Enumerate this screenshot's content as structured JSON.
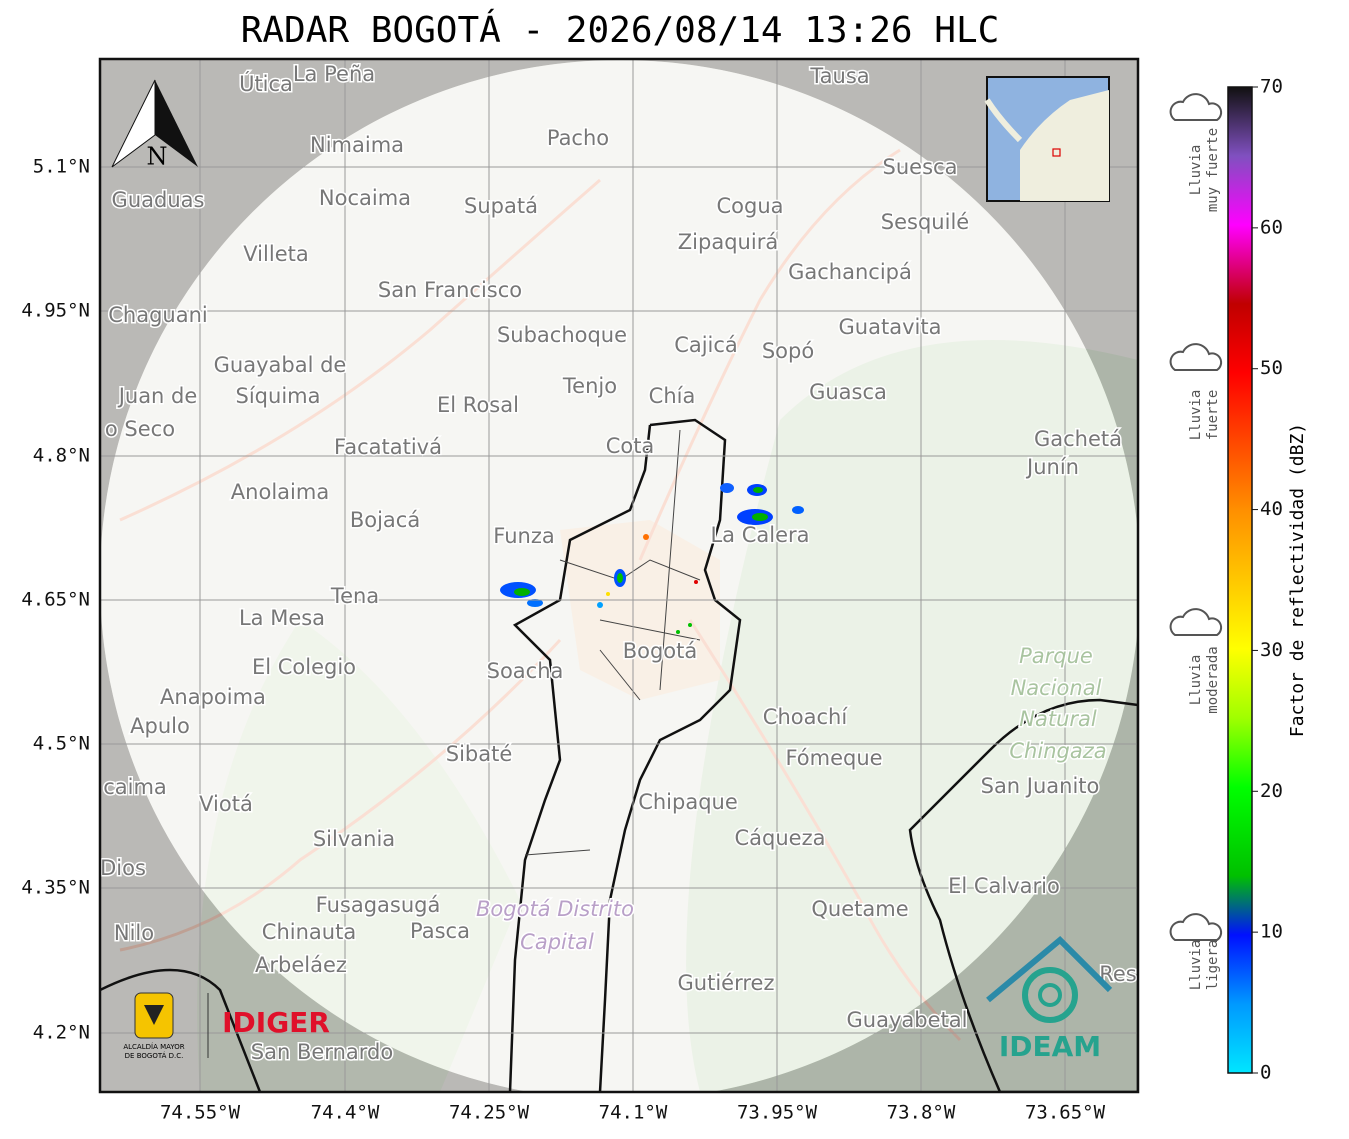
{
  "title": "RADAR BOGOTÁ - 2026/08/14 13:26 HLC",
  "lat_labels": [
    "5.1°N",
    "4.95°N",
    "4.8°N",
    "4.65°N",
    "4.5°N",
    "4.35°N",
    "4.2°N"
  ],
  "lon_labels": [
    "74.55°W",
    "74.4°W",
    "74.25°W",
    "74.1°W",
    "73.95°W",
    "73.8°W",
    "73.65°W"
  ],
  "north": "N",
  "colorbar": {
    "label": "Factor de reflectividad (dBZ)",
    "ticks": [
      0,
      10,
      20,
      30,
      40,
      50,
      60,
      70
    ],
    "lim": [
      0,
      70
    ]
  },
  "rain_levels": [
    {
      "line1": "Lluvia",
      "line2": "muy fuerte"
    },
    {
      "line1": "Lluvia",
      "line2": "fuerte"
    },
    {
      "line1": "Lluvia",
      "line2": "moderada"
    },
    {
      "line1": "Lluvia",
      "line2": "ligera"
    }
  ],
  "logos": {
    "idiger": "IDIGER",
    "ideam": "IDEAM",
    "alcaldia1": "ALCALDÍA MAYOR",
    "alcaldia2": "DE BOGOTÁ D.C."
  },
  "places": [
    "Útica",
    "La Peña",
    "Tausa",
    "Nimaima",
    "Pacho",
    "Suesca",
    "Guaduas",
    "Nocaima",
    "Supatá",
    "Cogua",
    "Sesquilé",
    "Villeta",
    "Zipaquirá",
    "Gachancipá",
    "San Francisco",
    "Chaguani",
    "Subachoque",
    "Guatavita",
    "Cajicá",
    "Sopó",
    "Guayabal de",
    "Síquima",
    "Tenjo",
    "Chía",
    "Guasca",
    "Juan de",
    "El Rosal",
    "o Seco",
    "Facatativá",
    "Cota",
    "Gachetá",
    "Junín",
    "Anolaima",
    "Bojacá",
    "Funza",
    "La Calera",
    "Tena",
    "La Mesa",
    "Bogotá",
    "El Colegio",
    "Soacha",
    "Parque",
    "Nacional",
    "Natural",
    "Chingaza",
    "Anapoima",
    "Apulo",
    "Choachí",
    "Sibaté",
    "Fómeque",
    "San Juanito",
    "caima",
    "Viotá",
    "Chipaque",
    "Silvania",
    "Cáqueza",
    "Dios",
    "El Calvario",
    "Fusagasugá",
    "Bogotá Distrito",
    "Quetame",
    "Nilo",
    "Chinauta",
    "Pasca",
    "Capital",
    "Arbeláez",
    "Gutiérrez",
    "Res",
    "Guayabetal",
    "San Bernardo"
  ]
}
